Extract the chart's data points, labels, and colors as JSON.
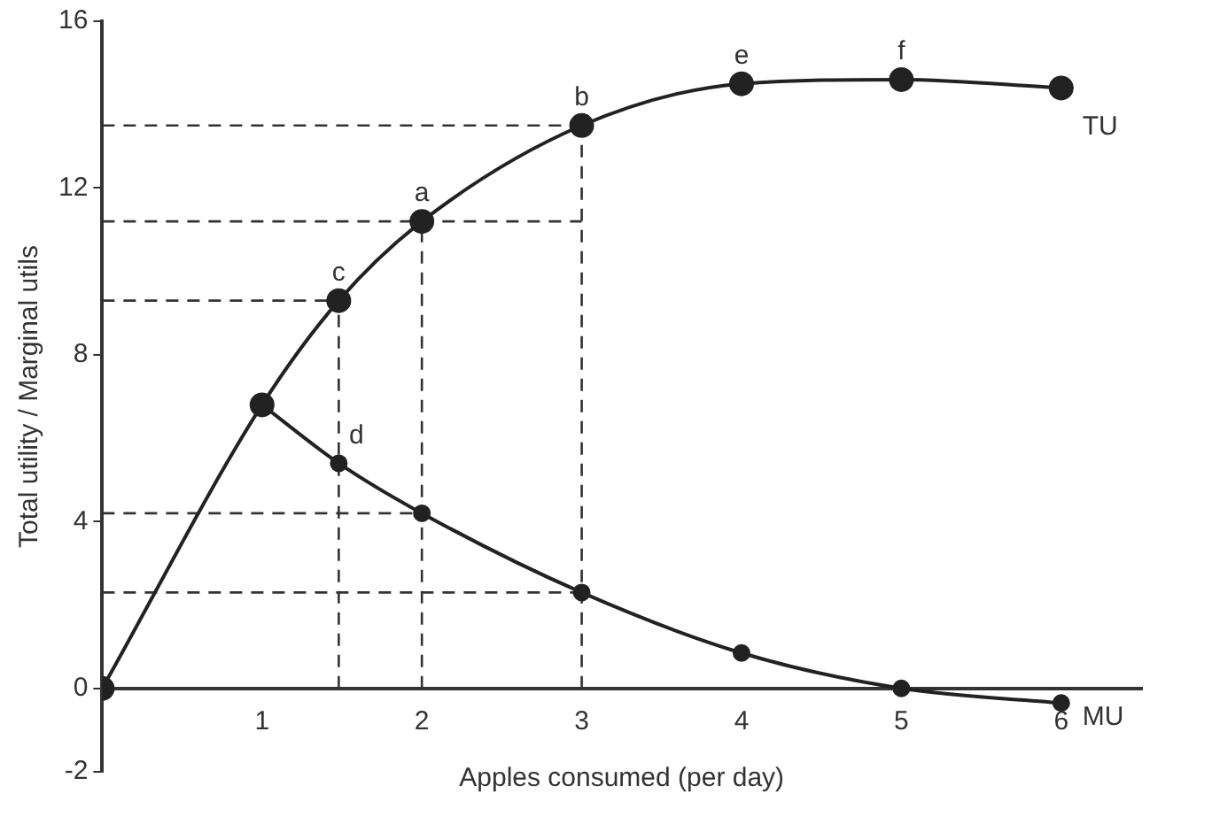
{
  "chart_data": {
    "type": "line",
    "xlabel": "Apples consumed (per day)",
    "ylabel": "Total utility / Marginal utils",
    "xlim": [
      0,
      6.5
    ],
    "ylim": [
      -2,
      16
    ],
    "xticks": [
      1,
      2,
      3,
      4,
      5,
      6
    ],
    "yticks": [
      -2,
      0,
      4,
      8,
      12,
      16
    ],
    "grid": false,
    "legend": false,
    "series": [
      {
        "name": "TU",
        "color": "#222222",
        "marker": "circle",
        "x": [
          0,
          1,
          1.48,
          2,
          3,
          4,
          5,
          6
        ],
        "values": [
          0,
          6.8,
          9.3,
          11.2,
          13.5,
          14.5,
          14.6,
          14.4
        ]
      },
      {
        "name": "MU",
        "color": "#222222",
        "marker": "circle",
        "x": [
          1,
          1.48,
          2,
          3,
          4,
          5,
          6
        ],
        "values": [
          6.8,
          5.4,
          4.2,
          2.3,
          0.85,
          0,
          -0.35
        ]
      },
      {
        "color": "#333333",
        "marker": "none",
        "line_style": "dashed",
        "x": [
          0,
          3
        ],
        "values": [
          13.5,
          13.5
        ]
      },
      {
        "color": "#333333",
        "marker": "none",
        "line_style": "dashed",
        "x": [
          0,
          3
        ],
        "values": [
          11.2,
          11.2
        ]
      },
      {
        "color": "#333333",
        "marker": "none",
        "line_style": "dashed",
        "x": [
          0,
          1.48
        ],
        "values": [
          9.3,
          9.3
        ]
      },
      {
        "color": "#333333",
        "marker": "none",
        "line_style": "dashed",
        "x": [
          0,
          2
        ],
        "values": [
          4.2,
          4.2
        ]
      },
      {
        "color": "#333333",
        "marker": "none",
        "line_style": "dashed",
        "x": [
          0,
          3
        ],
        "values": [
          2.3,
          2.3
        ]
      },
      {
        "color": "#333333",
        "marker": "none",
        "line_style": "dashed",
        "x": [
          1.48,
          1.48
        ],
        "values": [
          0,
          9.3
        ]
      },
      {
        "color": "#333333",
        "marker": "none",
        "line_style": "dashed",
        "x": [
          2,
          2
        ],
        "values": [
          0,
          11.2
        ]
      },
      {
        "color": "#333333",
        "marker": "none",
        "line_style": "dashed",
        "x": [
          3,
          3
        ],
        "values": [
          0,
          13.5
        ]
      }
    ],
    "annotations": [
      {
        "text": "a",
        "x": 2,
        "y": 11.2
      },
      {
        "text": "b",
        "x": 3,
        "y": 13.5
      },
      {
        "text": "c",
        "x": 1.48,
        "y": 9.3
      },
      {
        "text": "d",
        "x": 1.48,
        "y": 5.4
      },
      {
        "text": "e",
        "x": 4,
        "y": 14.5
      },
      {
        "text": "f",
        "x": 5,
        "y": 14.6
      }
    ]
  }
}
